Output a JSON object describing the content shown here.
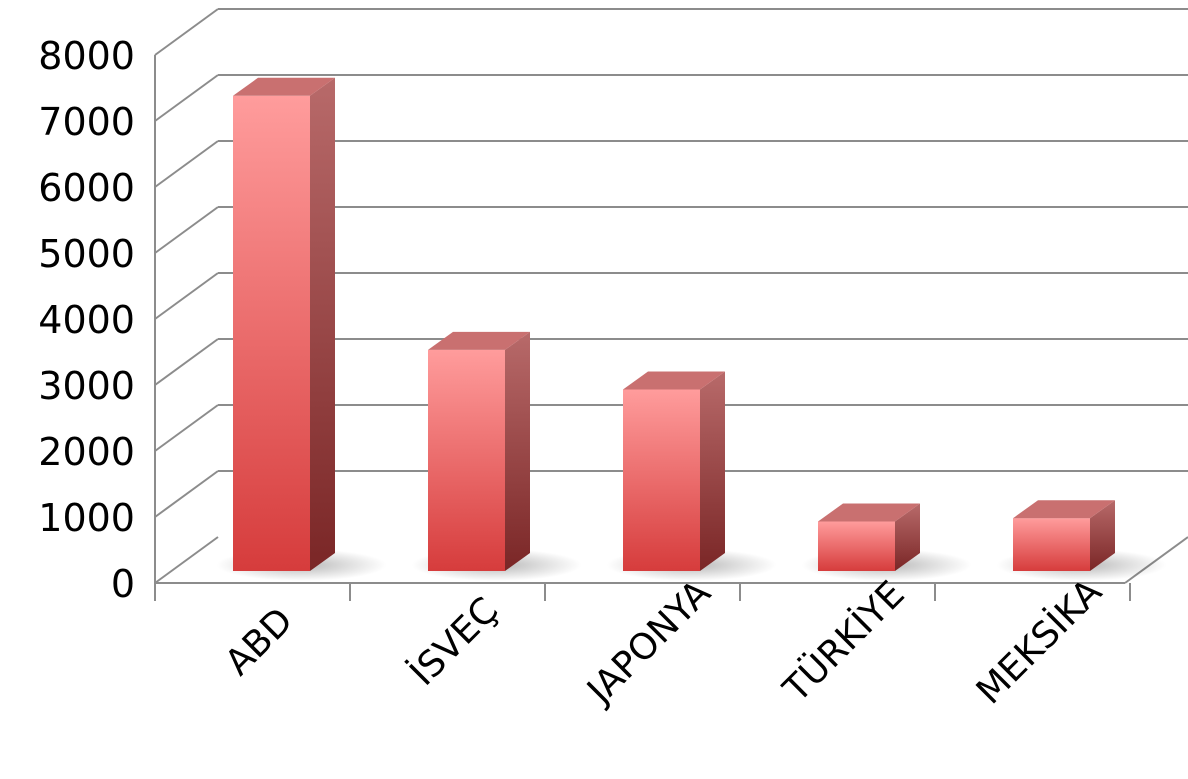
{
  "chart_data": {
    "type": "bar",
    "style": "3d-column",
    "categories": [
      "ABD",
      "İSVEÇ",
      "JAPONYA",
      "TÜRKİYE",
      "MEKSİKA"
    ],
    "values": [
      7200,
      3350,
      2750,
      750,
      800
    ],
    "ylim": [
      0,
      8000
    ],
    "yticks": [
      "0",
      "1000",
      "2000",
      "3000",
      "4000",
      "5000",
      "6000",
      "7000",
      "8000"
    ],
    "title": "",
    "xlabel": "",
    "ylabel": "",
    "grid": true,
    "legend": "none",
    "colors": {
      "bar_front_top": "#ff9c9c",
      "bar_front_bottom": "#d63c3c",
      "bar_side_top": "#b86a6a",
      "bar_side_bottom": "#7a2626",
      "bar_top": "#c97070",
      "gridline": "#8c8c8c",
      "text": "#000000"
    }
  }
}
